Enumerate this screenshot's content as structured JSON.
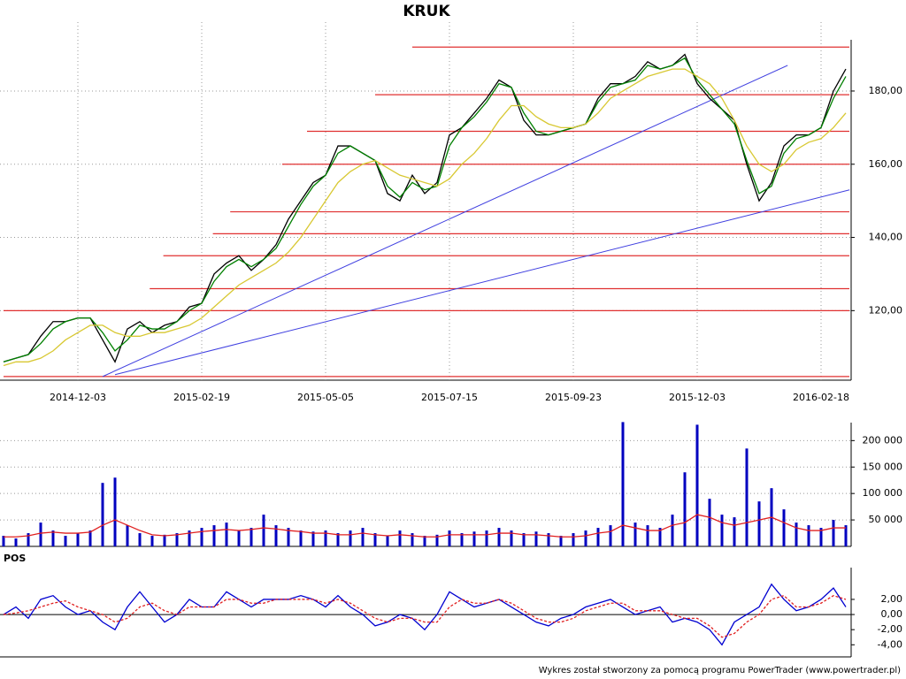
{
  "title": "KRUK",
  "footer": "Wykres został stworzony za pomocą programu PowerTrader (www.powertrader.pl)",
  "chart_data": [
    {
      "type": "line",
      "categories": [
        null,
        null,
        null,
        null,
        null,
        null,
        "2014-12-03",
        null,
        null,
        null,
        null,
        null,
        null,
        null,
        null,
        null,
        "2015-02-19",
        null,
        null,
        null,
        null,
        null,
        null,
        null,
        null,
        null,
        "2015-05-05",
        null,
        null,
        null,
        null,
        null,
        null,
        null,
        null,
        null,
        "2015-07-15",
        null,
        null,
        null,
        null,
        null,
        null,
        null,
        null,
        null,
        "2015-09-23",
        null,
        null,
        null,
        null,
        null,
        null,
        null,
        null,
        null,
        "2015-12-03",
        null,
        null,
        null,
        null,
        null,
        null,
        null,
        null,
        null,
        "2016-02-18",
        null,
        null
      ],
      "series": [
        {
          "color": "#000000",
          "values": [
            106,
            107,
            108,
            113,
            117,
            117,
            118,
            118,
            112,
            106,
            115,
            117,
            114,
            116,
            117,
            121,
            122,
            130,
            133,
            135,
            131,
            134,
            138,
            145,
            150,
            155,
            157,
            165,
            165,
            163,
            161,
            152,
            150,
            157,
            152,
            155,
            168,
            170,
            174,
            178,
            183,
            181,
            172,
            168,
            168,
            169,
            170,
            171,
            178,
            182,
            182,
            184,
            188,
            186,
            187,
            190,
            182,
            178,
            175,
            172,
            160,
            150,
            155,
            165,
            168,
            168,
            170,
            180,
            186
          ]
        },
        {
          "color": "#008000",
          "values": [
            106,
            107,
            108,
            111,
            115,
            117,
            118,
            118,
            114,
            109,
            112,
            116,
            115,
            115,
            117,
            120,
            122,
            128,
            132,
            134,
            132,
            134,
            137,
            143,
            149,
            154,
            157,
            163,
            165,
            163,
            161,
            154,
            151,
            155,
            153,
            154,
            165,
            170,
            173,
            177,
            182,
            181,
            174,
            169,
            168,
            169,
            170,
            171,
            177,
            181,
            182,
            183,
            187,
            186,
            187,
            189,
            183,
            179,
            175,
            171,
            161,
            152,
            154,
            163,
            167,
            168,
            170,
            178,
            184
          ]
        },
        {
          "color": "#d8c832",
          "values": [
            105,
            106,
            106,
            107,
            109,
            112,
            114,
            116,
            116,
            114,
            113,
            113,
            114,
            114,
            115,
            116,
            118,
            121,
            124,
            127,
            129,
            131,
            133,
            136,
            140,
            145,
            150,
            155,
            158,
            160,
            161,
            159,
            157,
            156,
            155,
            154,
            156,
            160,
            163,
            167,
            172,
            176,
            176,
            173,
            171,
            170,
            170,
            171,
            174,
            178,
            180,
            182,
            184,
            185,
            186,
            186,
            184,
            182,
            178,
            172,
            165,
            160,
            158,
            160,
            164,
            166,
            167,
            170,
            174
          ]
        }
      ],
      "levels": [
        {
          "value": 192,
          "from": 33
        },
        {
          "value": 179,
          "from": 30
        },
        {
          "value": 169,
          "from": 24.5
        },
        {
          "value": 160,
          "from": 22.5
        },
        {
          "value": 147,
          "from": 18.3
        },
        {
          "value": 141,
          "from": 16.9
        },
        {
          "value": 135,
          "from": 12.9
        },
        {
          "value": 126,
          "from": 11.8
        },
        {
          "value": 120,
          "from": 0
        },
        {
          "value": 102,
          "from": 0
        }
      ],
      "level_color": "#e03030",
      "trendlines": [
        {
          "x": [
            8,
            63.3
          ],
          "y": [
            102,
            187
          ]
        },
        {
          "x": [
            9,
            68.3
          ],
          "y": [
            102.5,
            153
          ]
        }
      ],
      "trend_color": "#4040e0",
      "ylim": [
        101,
        194
      ],
      "yticks": [
        {
          "value": 120,
          "label": "120,00"
        },
        {
          "value": 140,
          "label": "140,00"
        },
        {
          "value": 160,
          "label": "160,00"
        },
        {
          "value": 180,
          "label": "180,00"
        }
      ],
      "grid": true
    },
    {
      "type": "bar",
      "series": [
        {
          "type": "bar",
          "color": "#0000c0",
          "values": [
            20000,
            15000,
            25000,
            45000,
            30000,
            20000,
            25000,
            30000,
            120000,
            130000,
            40000,
            25000,
            20000,
            22000,
            25000,
            30000,
            35000,
            40000,
            45000,
            30000,
            35000,
            60000,
            40000,
            35000,
            30000,
            28000,
            30000,
            25000,
            30000,
            35000,
            25000,
            20000,
            30000,
            25000,
            20000,
            22000,
            30000,
            25000,
            28000,
            30000,
            35000,
            30000,
            25000,
            28000,
            25000,
            20000,
            25000,
            30000,
            35000,
            40000,
            235000,
            45000,
            40000,
            35000,
            60000,
            140000,
            230000,
            90000,
            60000,
            55000,
            185000,
            85000,
            110000,
            70000,
            45000,
            40000,
            35000,
            50000,
            40000
          ]
        },
        {
          "type": "line",
          "color": "#e02020",
          "values": [
            18000,
            18000,
            20000,
            25000,
            27000,
            25000,
            25000,
            27000,
            40000,
            50000,
            40000,
            30000,
            22000,
            20000,
            22000,
            25000,
            28000,
            30000,
            32000,
            30000,
            32000,
            35000,
            33000,
            30000,
            28000,
            25000,
            25000,
            22000,
            22000,
            25000,
            22000,
            20000,
            22000,
            20000,
            18000,
            18000,
            22000,
            22000,
            22000,
            22000,
            25000,
            25000,
            22000,
            22000,
            20000,
            18000,
            18000,
            20000,
            25000,
            28000,
            40000,
            35000,
            30000,
            30000,
            40000,
            45000,
            60000,
            55000,
            45000,
            40000,
            45000,
            50000,
            55000,
            45000,
            35000,
            30000,
            30000,
            35000,
            35000
          ]
        }
      ],
      "ylim": [
        0,
        234000
      ],
      "yticks": [
        {
          "value": 50000,
          "label": "50 000"
        },
        {
          "value": 100000,
          "label": "100 000"
        },
        {
          "value": 150000,
          "label": "150 000"
        },
        {
          "value": 200000,
          "label": "200 000"
        }
      ],
      "grid": true
    },
    {
      "type": "line",
      "title": "POS",
      "series": [
        {
          "color": "#0000d0",
          "values": [
            0,
            1,
            -0.5,
            2,
            2.5,
            1,
            0,
            0.5,
            -1,
            -2,
            1,
            3,
            1,
            -1,
            0,
            2,
            1,
            1,
            3,
            2,
            1,
            2,
            2,
            2,
            2.5,
            2,
            1,
            2.5,
            1,
            0,
            -1.5,
            -1,
            0,
            -0.5,
            -2,
            0,
            3,
            2,
            1,
            1.5,
            2,
            1,
            0,
            -1,
            -1.5,
            -0.5,
            0,
            1,
            1.5,
            2,
            1,
            0,
            0.5,
            1,
            -1,
            -0.5,
            -1,
            -2,
            -4,
            -1,
            0,
            1,
            4,
            2,
            0.5,
            1,
            2,
            3.5,
            1
          ]
        },
        {
          "color": "#e02020",
          "dashed": true,
          "values": [
            0,
            0.2,
            0.5,
            1,
            1.5,
            1.8,
            1,
            0.5,
            0,
            -1,
            -0.5,
            1,
            1.5,
            0.5,
            0,
            1,
            1,
            1,
            2,
            2,
            1.5,
            1.5,
            2,
            2,
            2,
            2,
            1.5,
            2,
            1.5,
            0.5,
            -0.5,
            -1,
            -0.5,
            -0.5,
            -1,
            -1,
            1,
            2,
            1.5,
            1.5,
            2,
            1.5,
            0.5,
            -0.5,
            -1,
            -1,
            -0.5,
            0.5,
            1,
            1.5,
            1.5,
            0.5,
            0.5,
            0.5,
            0,
            -0.5,
            -0.5,
            -1.5,
            -3,
            -2.5,
            -1,
            0,
            2,
            2.5,
            1,
            1,
            1.5,
            2.5,
            2
          ]
        }
      ],
      "zero_line": 0,
      "ylim": [
        -5.6,
        6.2
      ],
      "yticks": [
        {
          "value": -4,
          "label": "-4,00"
        },
        {
          "value": -2,
          "label": "-2,00"
        },
        {
          "value": 0,
          "label": "0,00"
        },
        {
          "value": 2,
          "label": "2,00"
        }
      ],
      "grid": false
    }
  ]
}
